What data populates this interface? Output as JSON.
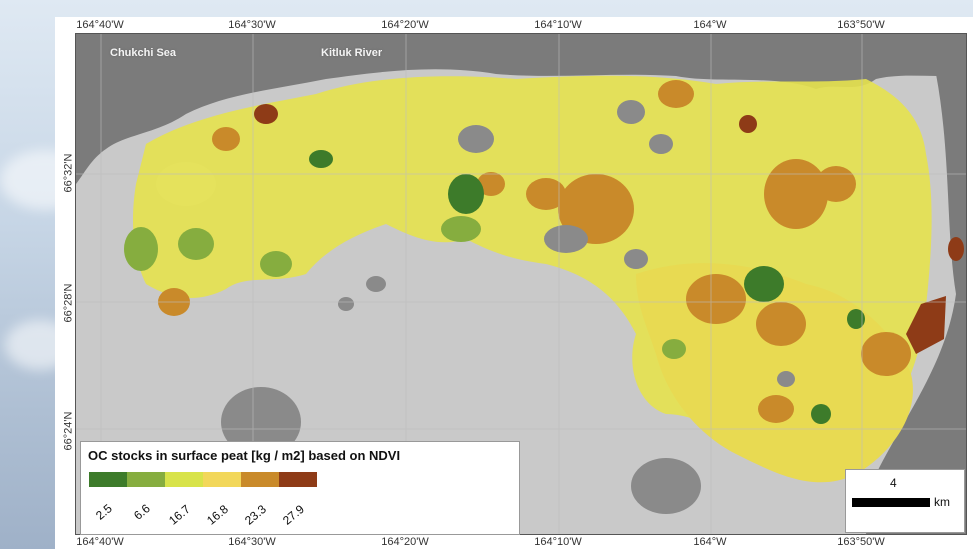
{
  "lon_ticks": [
    "164°40'W",
    "164°30'W",
    "164°20'W",
    "164°10'W",
    "164°W",
    "163°50'W"
  ],
  "lat_ticks": [
    "66°32'N",
    "66°28'N",
    "66°24'N"
  ],
  "places": {
    "chukchi_sea": "Chukchi Sea",
    "kitluk_river": "Kitluk River"
  },
  "legend": {
    "title": "OC stocks in surface peat [kg / m2] based on NDVI",
    "classes": [
      {
        "label": "2.5",
        "color": "#3d7b2a"
      },
      {
        "label": "6.6",
        "color": "#86ad3f"
      },
      {
        "label": "16.7",
        "color": "#d8e34a"
      },
      {
        "label": "16.8",
        "color": "#f2d75a"
      },
      {
        "label": "23.3",
        "color": "#c98a2a"
      },
      {
        "label": "27.9",
        "color": "#8e3b17"
      }
    ]
  },
  "scale": {
    "value": "4",
    "unit": "km"
  },
  "colors": {
    "land": "#c9c9c9",
    "water": "#7b7b7b",
    "lake": "#8a8a8a"
  }
}
